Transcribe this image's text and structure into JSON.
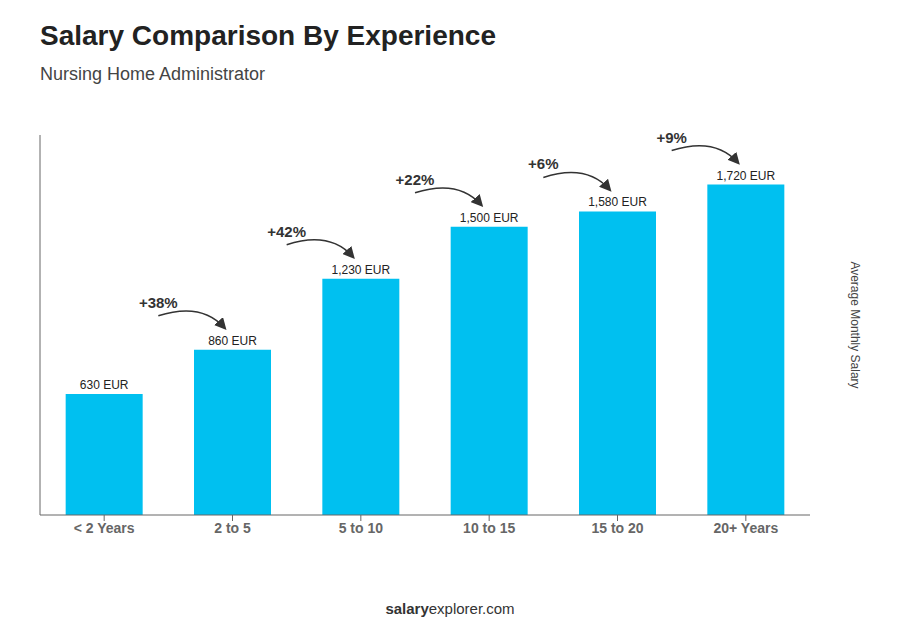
{
  "chart_data": {
    "type": "bar",
    "title": "Salary Comparison By Experience",
    "subtitle": "Nursing Home Administrator",
    "categories": [
      "< 2 Years",
      "2 to 5",
      "5 to 10",
      "10 to 15",
      "15 to 20",
      "20+ Years"
    ],
    "values": [
      630,
      860,
      1230,
      1500,
      1580,
      1720
    ],
    "value_labels": [
      "630 EUR",
      "860 EUR",
      "1,230 EUR",
      "1,500 EUR",
      "1,580 EUR",
      "1,720 EUR"
    ],
    "data_labels": true,
    "annotations": [
      "+38%",
      "+42%",
      "+22%",
      "+6%",
      "+9%"
    ],
    "ylabel": "Average Monthly Salary",
    "footer": [
      "salary",
      "explorer.com"
    ],
    "color": "#00c0f0",
    "ylim": [
      0,
      1978
    ],
    "tick_labels": "x",
    "grid": false
  }
}
